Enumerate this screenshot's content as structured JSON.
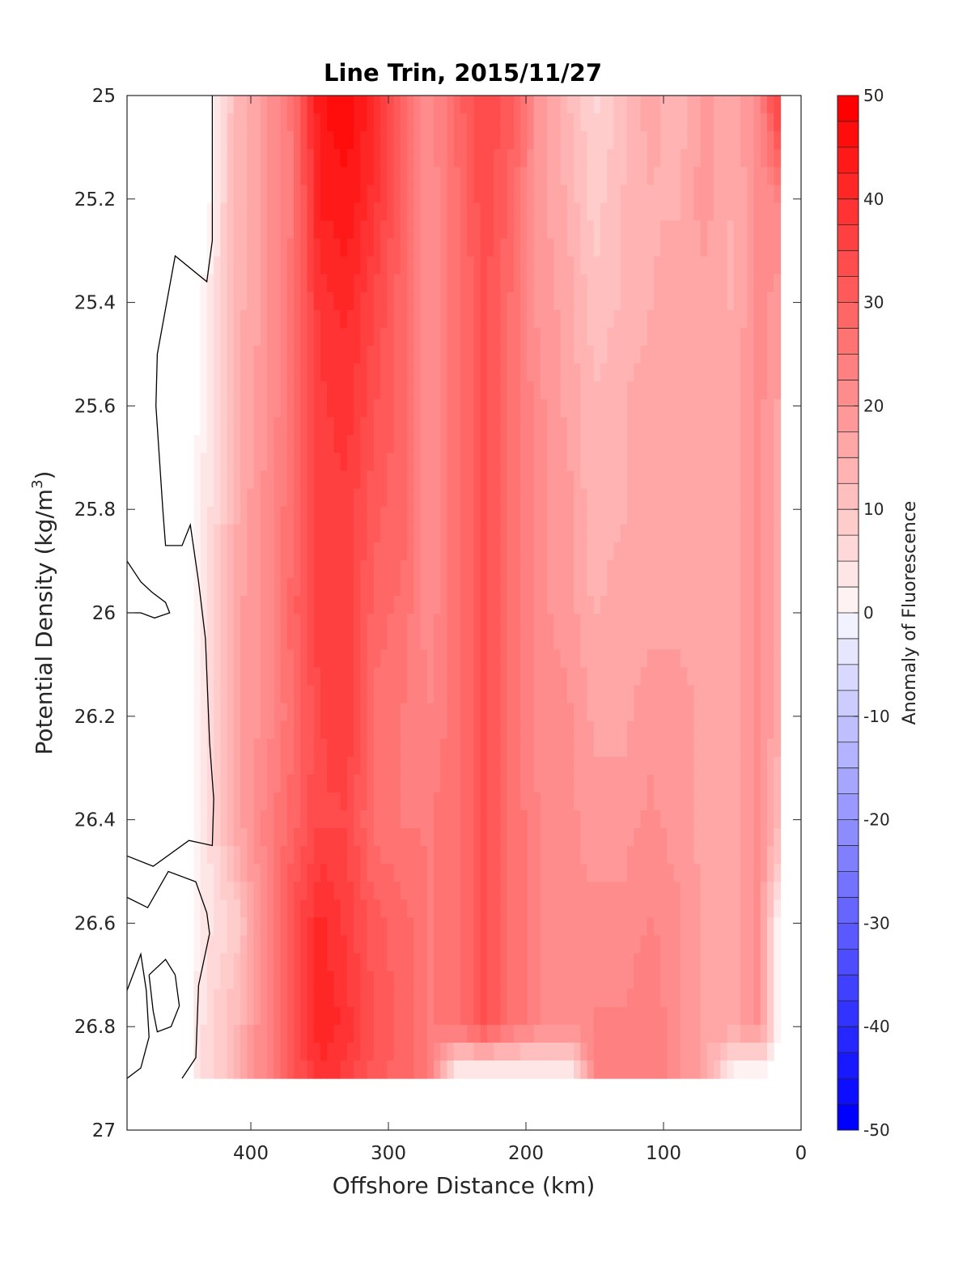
{
  "chart_data": {
    "type": "heatmap",
    "title": "Line Trin, 2015/11/27",
    "xlabel": "Offshore Distance (km)",
    "ylabel": "Potential Density (kg/m",
    "ylabel_sup": "3",
    "ylabel_tail": ")",
    "colorbar_label": "Anomaly of Fluorescence",
    "xlim": [
      490,
      0
    ],
    "ylim": [
      25,
      27
    ],
    "x_reversed": true,
    "y_reversed": true,
    "clim": [
      -50,
      50
    ],
    "xticks": [
      400,
      300,
      200,
      100,
      0
    ],
    "yticks": [
      25,
      25.2,
      25.4,
      25.6,
      25.8,
      26,
      26.2,
      26.4,
      26.6,
      26.8,
      27
    ],
    "yticklabels": [
      "25",
      "25.2",
      "25.4",
      "25.6",
      "25.8",
      "26",
      "26.2",
      "26.4",
      "26.6",
      "26.8",
      "27"
    ],
    "cbticks": [
      50,
      40,
      30,
      20,
      10,
      0,
      -10,
      -20,
      -30,
      -40,
      -50
    ],
    "colors": {
      "positive": "#ff0000",
      "negative": "#0000ff",
      "zero": "#ffffff",
      "contour": "#000000"
    },
    "x": [
      490,
      450,
      430,
      410,
      390,
      370,
      350,
      330,
      310,
      290,
      270,
      250,
      230,
      210,
      190,
      170,
      150,
      130,
      110,
      90,
      70,
      50,
      30,
      15
    ],
    "y": [
      25,
      25.2,
      25.4,
      25.6,
      25.8,
      26,
      26.2,
      26.4,
      26.6,
      26.8,
      26.9
    ],
    "z": [
      [
        0,
        -2,
        2,
        14,
        20,
        27,
        46,
        48,
        42,
        30,
        22,
        30,
        36,
        32,
        20,
        14,
        8,
        12,
        18,
        14,
        20,
        16,
        24,
        40
      ],
      [
        0,
        -2,
        2,
        15,
        20,
        26,
        44,
        46,
        40,
        30,
        22,
        28,
        36,
        30,
        20,
        16,
        10,
        14,
        16,
        16,
        20,
        16,
        22,
        24
      ],
      [
        0,
        0,
        4,
        15,
        20,
        28,
        40,
        42,
        36,
        30,
        22,
        28,
        34,
        28,
        20,
        18,
        12,
        14,
        16,
        18,
        18,
        16,
        22,
        20
      ],
      [
        0,
        0,
        4,
        16,
        20,
        28,
        38,
        40,
        34,
        30,
        22,
        28,
        34,
        28,
        22,
        18,
        14,
        16,
        18,
        18,
        18,
        18,
        22,
        18
      ],
      [
        0,
        0,
        6,
        16,
        22,
        28,
        38,
        38,
        32,
        30,
        22,
        28,
        34,
        28,
        22,
        20,
        14,
        16,
        18,
        18,
        18,
        18,
        22,
        16
      ],
      [
        0,
        0,
        6,
        18,
        22,
        30,
        38,
        38,
        30,
        28,
        22,
        28,
        34,
        28,
        22,
        20,
        16,
        18,
        18,
        18,
        18,
        18,
        22,
        16
      ],
      [
        -2,
        0,
        6,
        18,
        22,
        28,
        36,
        38,
        28,
        26,
        24,
        28,
        34,
        28,
        22,
        22,
        18,
        18,
        20,
        20,
        18,
        18,
        22,
        16
      ],
      [
        0,
        0,
        6,
        18,
        24,
        30,
        36,
        36,
        28,
        26,
        26,
        28,
        34,
        28,
        24,
        22,
        20,
        20,
        22,
        20,
        18,
        18,
        22,
        14
      ],
      [
        -2,
        0,
        6,
        10,
        24,
        34,
        42,
        38,
        32,
        30,
        26,
        28,
        34,
        28,
        24,
        22,
        22,
        22,
        24,
        22,
        18,
        18,
        22,
        0
      ],
      [
        -2,
        0,
        8,
        14,
        24,
        34,
        44,
        40,
        34,
        30,
        26,
        28,
        34,
        28,
        24,
        22,
        24,
        24,
        26,
        22,
        18,
        18,
        22,
        0
      ],
      [
        -2,
        0,
        8,
        14,
        24,
        32,
        40,
        38,
        32,
        30,
        26,
        0,
        0,
        0,
        0,
        0,
        24,
        24,
        26,
        22,
        18,
        0,
        0,
        0
      ]
    ]
  }
}
